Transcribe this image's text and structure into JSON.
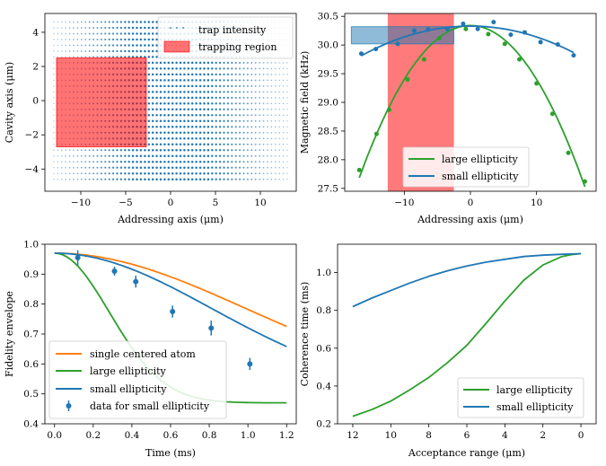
{
  "colors": {
    "blue": "#1f77b4",
    "orange": "#ff7f0e",
    "green": "#2ca02c",
    "red": "#ff0000",
    "axis": "#000000"
  },
  "chart_data": [
    {
      "id": "panel_a",
      "type": "scatter",
      "xlabel": "Addressing axis (μm)",
      "ylabel": "Cavity axis (μm)",
      "xlim": [
        -14,
        14
      ],
      "ylim": [
        -5.3,
        5.1
      ],
      "xticks": [
        -10,
        -5,
        0,
        5,
        10
      ],
      "yticks": [
        -4,
        -2,
        0,
        2,
        4
      ],
      "grid": false,
      "legend": [
        {
          "label": "trap intensity",
          "kind": "dots",
          "color": "#1f77b4"
        },
        {
          "label": "trapping region",
          "kind": "patch",
          "color": "#ff0000"
        }
      ],
      "trap_intensity": {
        "x_range": [
          -13,
          13
        ],
        "y_range": [
          -4.6,
          4.6
        ],
        "peak_x": 0,
        "fade_width": 8
      },
      "trapping_region": {
        "x": [
          -12.7,
          -2.7
        ],
        "y": [
          -2.7,
          2.5
        ]
      }
    },
    {
      "id": "panel_b",
      "type": "line",
      "xlabel": "Addressing axis (μm)",
      "ylabel": "Magnetic field (kHz)",
      "xlim": [
        -19,
        19
      ],
      "ylim": [
        27.45,
        30.55
      ],
      "xticks": [
        -10,
        0,
        10
      ],
      "yticks": [
        27.5,
        28.0,
        28.5,
        29.0,
        29.5,
        30.0,
        30.5
      ],
      "grid": false,
      "legend_location": "lower-right",
      "highlight_region": {
        "x": [
          -12.5,
          -2.5
        ],
        "color": "#ff0000"
      },
      "highlight_band": {
        "x": [
          -18,
          -2.5
        ],
        "y": [
          30.02,
          30.32
        ],
        "color": "#1f77b4"
      },
      "series": [
        {
          "name": "large ellipticity",
          "color": "#2ca02c",
          "x": [
            -16.8,
            -14.2,
            -12.3,
            -9.5,
            -7.0,
            -4.7,
            -0.7,
            2.7,
            5.2,
            7.4,
            10.0,
            12.4,
            14.8,
            17.3
          ],
          "y": [
            27.82,
            28.45,
            28.87,
            29.4,
            29.75,
            30.12,
            30.28,
            30.19,
            30.02,
            29.75,
            29.33,
            28.8,
            28.12,
            27.62
          ],
          "fit_coeffs": [
            30.34,
            0.0,
            -0.0094
          ]
        },
        {
          "name": "small ellipticity",
          "color": "#1f77b4",
          "x": [
            -16.5,
            -14.3,
            -11.0,
            -8.5,
            -6.4,
            -3.5,
            -1.1,
            1.1,
            3.5,
            6.1,
            8.2,
            10.6,
            13.2,
            15.6
          ],
          "y": [
            29.85,
            29.93,
            30.02,
            30.25,
            30.27,
            30.28,
            30.37,
            30.28,
            30.4,
            30.18,
            30.22,
            30.05,
            30.01,
            29.82
          ],
          "fit_coeffs": [
            30.33,
            0.0,
            -0.0019
          ]
        }
      ]
    },
    {
      "id": "panel_c",
      "type": "line",
      "xlabel": "Time (ms)",
      "ylabel": "Fidelity envelope",
      "xlim": [
        -0.05,
        1.25
      ],
      "ylim": [
        0.4,
        1.0
      ],
      "xticks": [
        0.0,
        0.2,
        0.4,
        0.6,
        0.8,
        1.0,
        1.2
      ],
      "yticks": [
        0.4,
        0.5,
        0.6,
        0.7,
        0.8,
        0.9,
        1.0
      ],
      "grid": false,
      "legend_location": "lower-left",
      "series": [
        {
          "name": "single centered atom",
          "color": "#ff7f0e",
          "tau": 1.4,
          "y0": 0.97,
          "y_inf": 0.5
        },
        {
          "name": "large ellipticity",
          "color": "#2ca02c",
          "tau": 0.4,
          "y0": 0.97,
          "y_inf": 0.47
        },
        {
          "name": "small ellipticity",
          "color": "#1f77b4",
          "tau": 1.15,
          "y0": 0.97,
          "y_inf": 0.5
        }
      ],
      "errorbar_series": {
        "name": "data for small ellipticity",
        "color": "#1f77b4",
        "x": [
          0.12,
          0.31,
          0.42,
          0.61,
          0.81,
          1.01
        ],
        "y": [
          0.955,
          0.91,
          0.875,
          0.775,
          0.72,
          0.6
        ],
        "yerr": [
          0.025,
          0.015,
          0.02,
          0.02,
          0.025,
          0.02
        ]
      }
    },
    {
      "id": "panel_d",
      "type": "line",
      "xlabel": "Acceptance range (μm)",
      "ylabel": "Coherence time (ms)",
      "xlim": [
        12.8,
        -0.8
      ],
      "ylim": [
        0.2,
        1.15
      ],
      "xticks": [
        12,
        10,
        8,
        6,
        4,
        2,
        0
      ],
      "yticks": [
        0.2,
        0.4,
        0.6,
        0.8,
        1.0
      ],
      "grid": false,
      "legend_location": "lower-right",
      "series": [
        {
          "name": "large ellipticity",
          "color": "#2ca02c",
          "x": [
            12,
            11,
            10,
            9,
            8,
            7,
            6,
            5,
            4,
            3,
            2,
            1,
            0.5,
            0
          ],
          "y": [
            0.24,
            0.275,
            0.32,
            0.38,
            0.445,
            0.525,
            0.615,
            0.73,
            0.85,
            0.96,
            1.04,
            1.085,
            1.095,
            1.1
          ]
        },
        {
          "name": "small ellipticity",
          "color": "#1f77b4",
          "x": [
            12,
            11,
            10,
            9,
            8,
            7,
            6,
            5,
            4,
            3,
            2,
            1,
            0
          ],
          "y": [
            0.82,
            0.865,
            0.905,
            0.945,
            0.98,
            1.01,
            1.035,
            1.055,
            1.07,
            1.085,
            1.092,
            1.097,
            1.1
          ]
        }
      ]
    }
  ]
}
